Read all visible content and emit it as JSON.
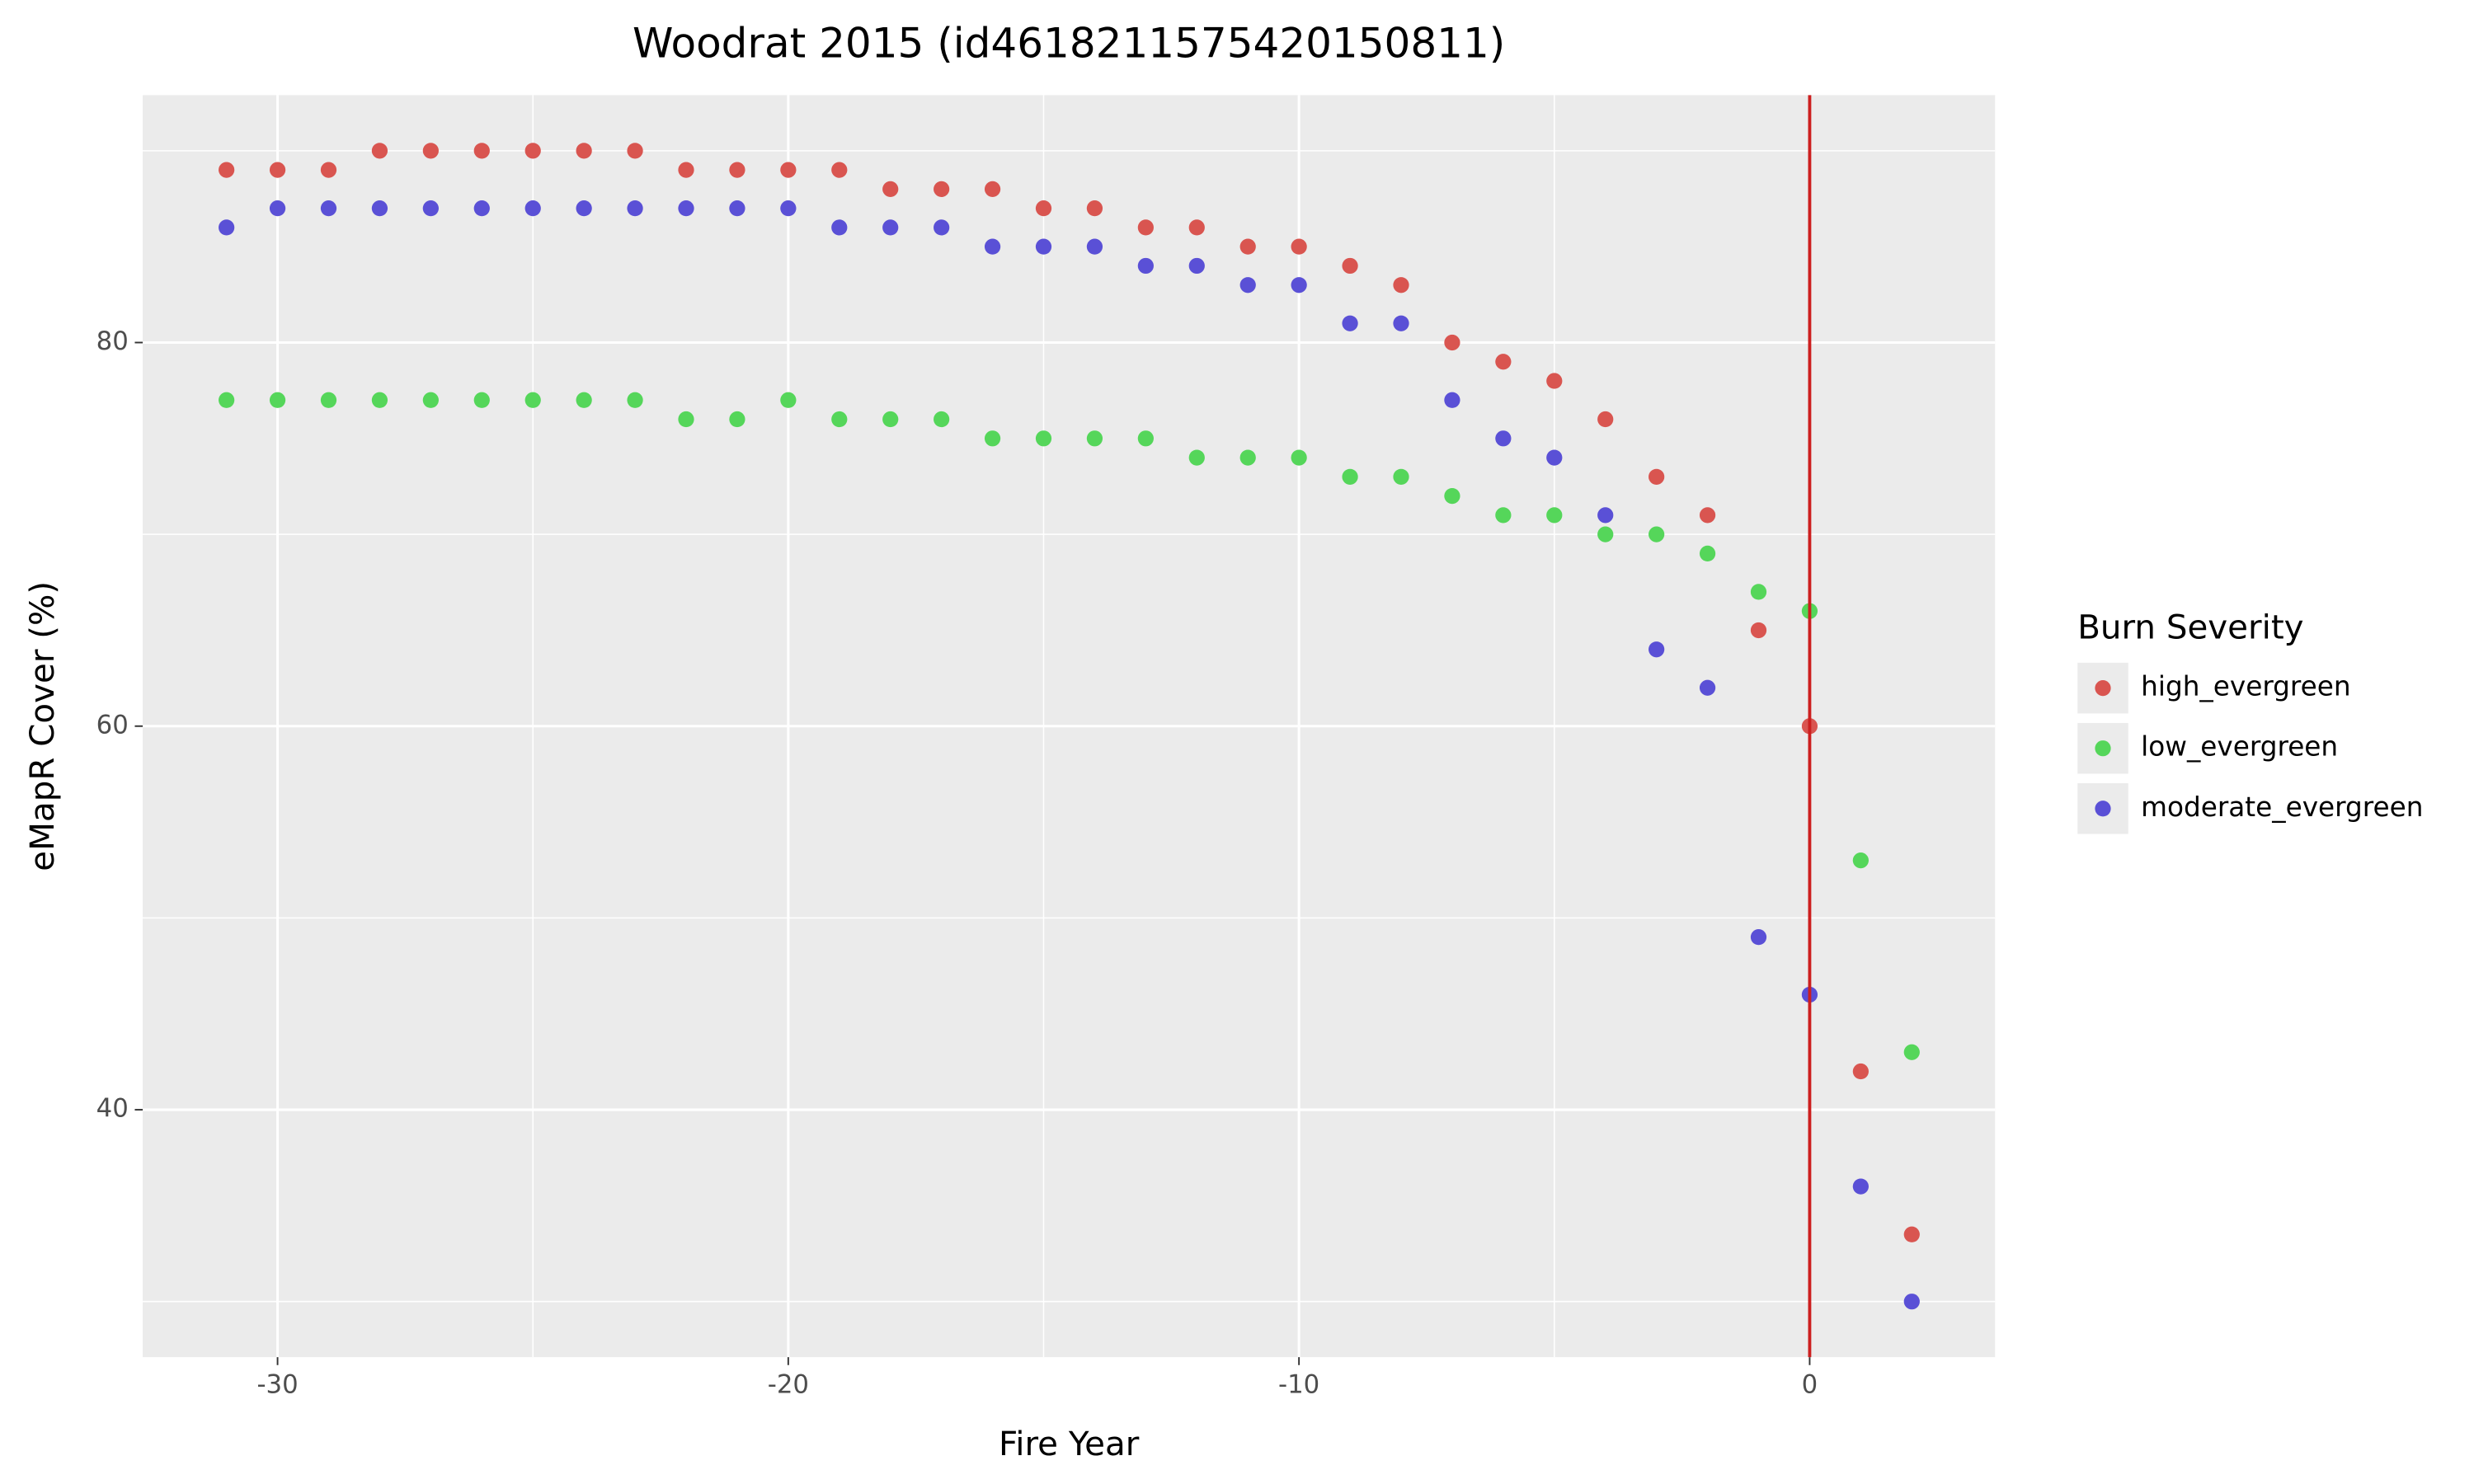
{
  "chart_data": {
    "type": "scatter",
    "title": "Woodrat 2015 (id461821157542015081​1)",
    "x_label": "Fire Year",
    "y_label": "eMapR Cover (%)",
    "legend_title": "Burn Severity",
    "legend_position": "right",
    "x": [
      -31,
      -30,
      -29,
      -28,
      -27,
      -26,
      -25,
      -24,
      -23,
      -22,
      -21,
      -20,
      -19,
      -18,
      -17,
      -16,
      -15,
      -14,
      -13,
      -12,
      -11,
      -10,
      -9,
      -8,
      -7,
      -6,
      -5,
      -4,
      -3,
      -2,
      -1,
      0,
      1,
      2
    ],
    "series": [
      {
        "name": "high_evergreen",
        "color": "#d95550",
        "values": [
          89,
          89,
          89,
          90,
          90,
          90,
          90,
          90,
          90,
          89,
          89,
          89,
          89,
          88,
          88,
          88,
          87,
          87,
          86,
          86,
          85,
          85,
          84,
          83,
          80,
          79,
          78,
          76,
          73,
          71,
          65,
          60,
          42,
          33.5
        ]
      },
      {
        "name": "low_evergreen",
        "color": "#55d65a",
        "values": [
          77,
          77,
          77,
          77,
          77,
          77,
          77,
          77,
          77,
          76,
          76,
          77,
          76,
          76,
          76,
          75,
          75,
          75,
          75,
          74,
          74,
          74,
          73,
          73,
          72,
          71,
          71,
          70,
          70,
          69,
          67,
          66,
          53,
          43
        ]
      },
      {
        "name": "moderate_evergreen",
        "color": "#5a50d6",
        "values": [
          86,
          87,
          87,
          87,
          87,
          87,
          87,
          87,
          87,
          87,
          87,
          87,
          86,
          86,
          86,
          85,
          85,
          85,
          84,
          84,
          83,
          83,
          81,
          81,
          77,
          75,
          74,
          71,
          64,
          62,
          49,
          46,
          36,
          30
        ]
      }
    ],
    "xlim": [
      -32.64,
      3.63
    ],
    "xticks": [
      -30,
      -20,
      -10,
      0
    ],
    "x_minor_ticks": [
      -25,
      -15,
      -5
    ],
    "ylim": [
      27.1,
      92.9
    ],
    "yticks": [
      40,
      60,
      80
    ],
    "y_minor_ticks": [
      30,
      50,
      70,
      90
    ],
    "grid": true,
    "vline": {
      "x": 0,
      "color": "#cc1f1f"
    }
  }
}
